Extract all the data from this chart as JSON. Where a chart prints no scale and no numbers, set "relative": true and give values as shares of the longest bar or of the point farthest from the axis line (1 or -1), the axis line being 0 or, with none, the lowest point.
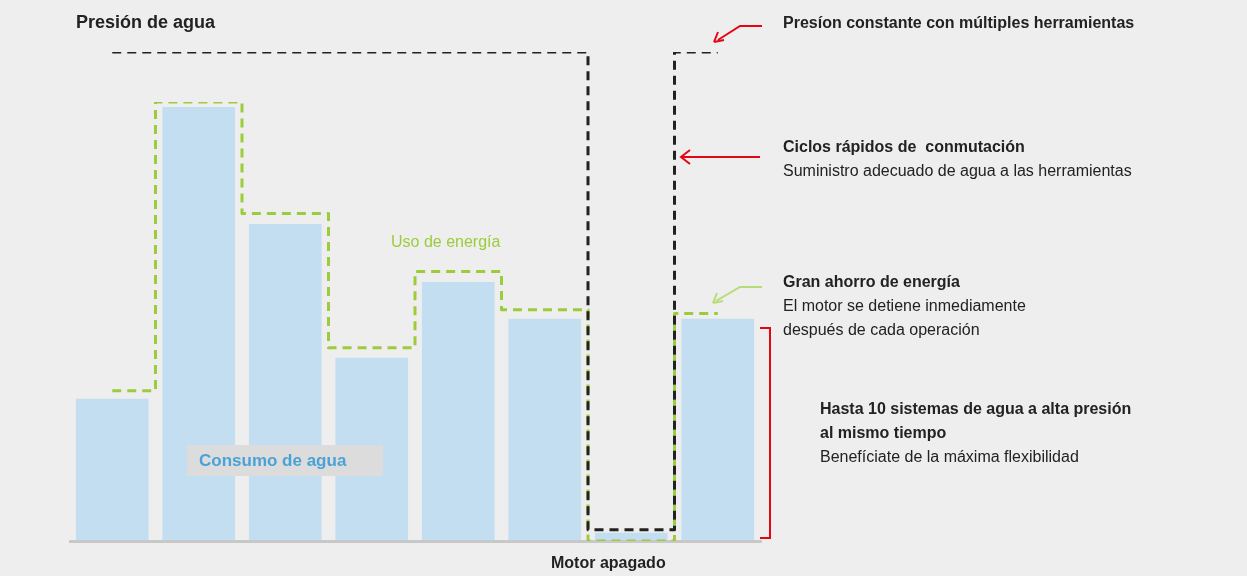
{
  "chart_data": [
    {
      "type": "bar",
      "relative": true,
      "categories": [
        null,
        null,
        null,
        null,
        null,
        null,
        null,
        null
      ],
      "series": [
        {
          "name": "Consumo de agua",
          "color": "#c2def0",
          "values": [
            0.326,
            1,
            0.73,
            0.421,
            0.596,
            0.511,
            0.017,
            0.511
          ]
        }
      ],
      "annotations": [
        "Presíon constante con múltiples herramientas",
        "Ciclos rápidos de  conmutación",
        "Suministro adecuado de agua a las herramientas",
        "Gran ahorro de energía",
        "El motor se detiene inmediamente",
        "después de cada operación",
        "Hasta 10 sistemas de agua a alta presión",
        "al mismo tiempo",
        "Benefíciate de la máxima flexibilidad",
        "Motor apagado"
      ]
    },
    {
      "type": "step",
      "relative": true,
      "line_style": "dashed",
      "categories": [
        null,
        null,
        null,
        null,
        null,
        null,
        null,
        null
      ],
      "series": [
        {
          "name": "Uso de energía",
          "color": "#9ccc3c",
          "values": [
            0.342,
            1,
            0.746,
            0.44,
            0.614,
            0.527,
            0,
            0.518
          ]
        }
      ]
    },
    {
      "type": "step",
      "relative": true,
      "line_style": "dashed",
      "categories": [
        null,
        null,
        null,
        null,
        null,
        null,
        null,
        null
      ],
      "series": [
        {
          "name": "Presión de agua",
          "color": "#222222",
          "values": [
            1,
            1,
            1,
            1,
            1,
            1,
            0.025,
            1
          ]
        }
      ]
    }
  ]
}
